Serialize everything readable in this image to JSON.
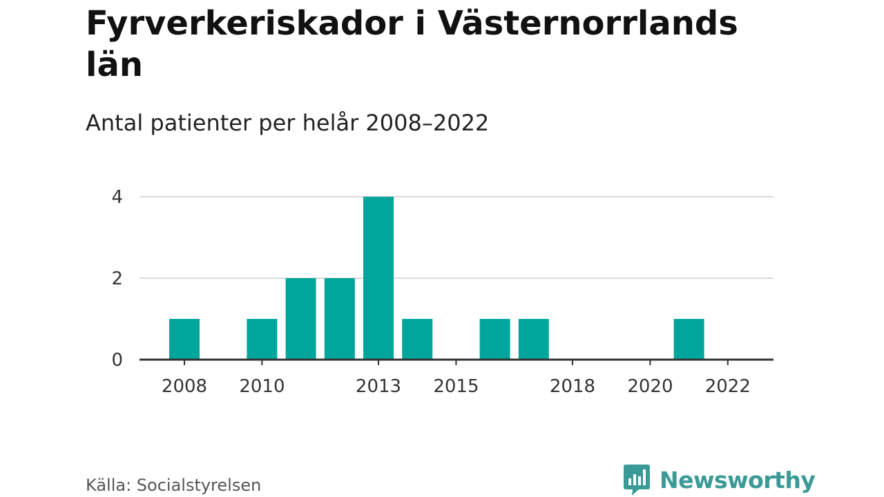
{
  "chart_data": {
    "type": "bar",
    "title": "Fyrverkeriskador i Västernorrlands län",
    "subtitle": "Antal patienter per helår 2008–2022",
    "xlabel": "",
    "ylabel": "",
    "categories": [
      "2008",
      "2009",
      "2010",
      "2011",
      "2012",
      "2013",
      "2014",
      "2015",
      "2016",
      "2017",
      "2018",
      "2019",
      "2020",
      "2021",
      "2022"
    ],
    "values": [
      1,
      0,
      1,
      2,
      2,
      4,
      1,
      0,
      1,
      1,
      0,
      0,
      0,
      1,
      0
    ],
    "x_tick_labels": [
      "2008",
      "2010",
      "2013",
      "2015",
      "2018",
      "2020",
      "2022"
    ],
    "y_ticks": [
      "0",
      "2",
      "4"
    ],
    "ylim": [
      0,
      4
    ],
    "grid": true,
    "bar_color": "#00a69c"
  },
  "footer": {
    "source": "Källa: Socialstyrelsen",
    "brand": "Newsworthy",
    "brand_color": "#3a9a96",
    "brand_icon": "bar-chart-speech-bubble-icon"
  }
}
